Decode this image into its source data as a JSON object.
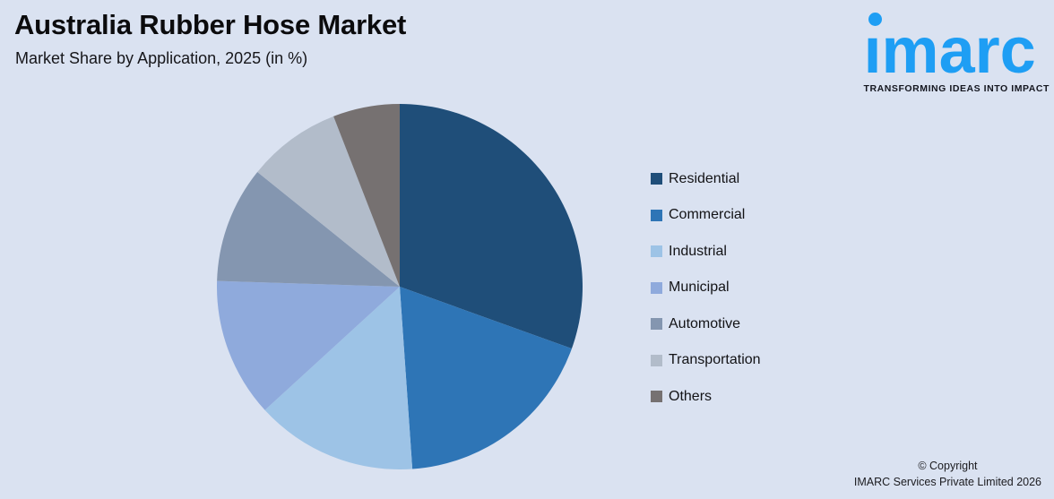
{
  "page": {
    "background": "#DAE2F1"
  },
  "header": {
    "title": "Australia Rubber Hose Market",
    "subtitle": "Market Share by Application, 2025 (in %)"
  },
  "logo": {
    "wordmark": "imarc",
    "tagline": "TRANSFORMING IDEAS INTO IMPACT",
    "brand_color": "#1E9EF4",
    "tagline_color": "#14161F"
  },
  "chart_data": {
    "type": "pie",
    "title": "Australia Rubber Hose Market",
    "subtitle": "Market Share by Application, 2025 (in %)",
    "unit": "percent",
    "legend_position": "right",
    "start_angle_deg": 0,
    "direction": "clockwise",
    "slices": [
      {
        "label": "Residential",
        "value": 30.5,
        "color": "#1F4E79"
      },
      {
        "label": "Commercial",
        "value": 18.4,
        "color": "#2E75B6"
      },
      {
        "label": "Industrial",
        "value": 14.3,
        "color": "#9DC3E6"
      },
      {
        "label": "Municipal",
        "value": 12.3,
        "color": "#8FAADC"
      },
      {
        "label": "Automotive",
        "value": 10.3,
        "color": "#8496B0"
      },
      {
        "label": "Transportation",
        "value": 8.3,
        "color": "#B2BCCA"
      },
      {
        "label": "Others",
        "value": 5.9,
        "color": "#767171"
      }
    ]
  },
  "footer": {
    "copyright_line1": "© Copyright",
    "copyright_line2": "IMARC Services Private Limited 2026"
  }
}
